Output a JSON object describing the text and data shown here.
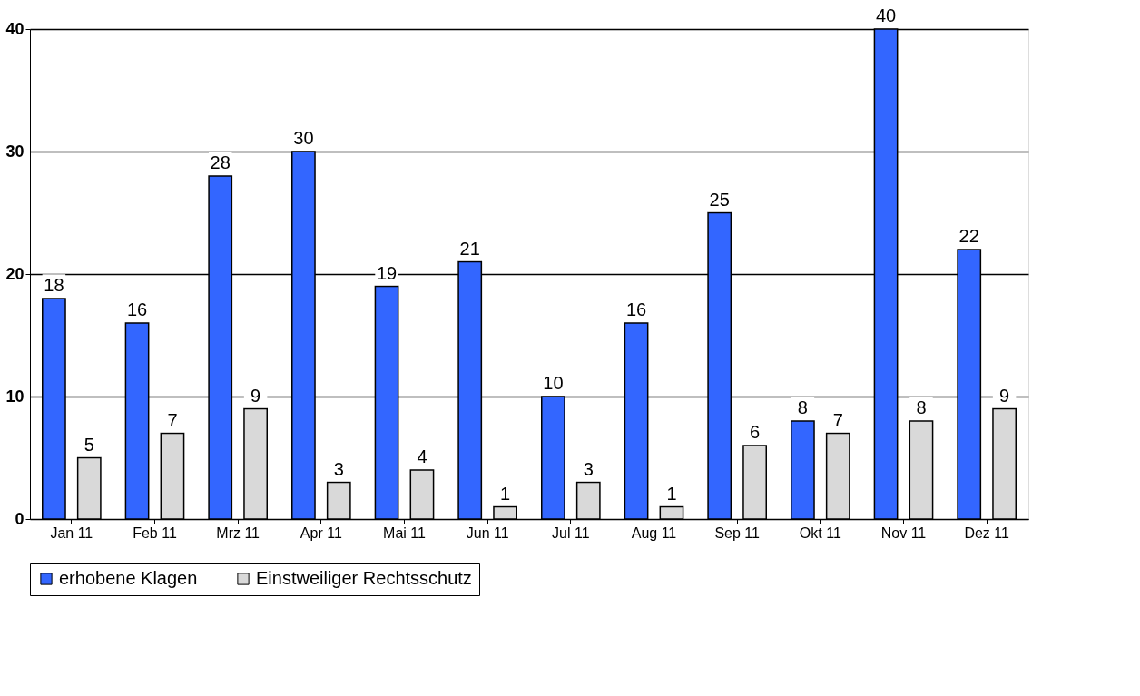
{
  "chart_data": {
    "type": "bar",
    "categories": [
      "Jan 11",
      "Feb 11",
      "Mrz 11",
      "Apr 11",
      "Mai 11",
      "Jun 11",
      "Jul 11",
      "Aug 11",
      "Sep 11",
      "Okt 11",
      "Nov 11",
      "Dez 11"
    ],
    "series": [
      {
        "name": "erhobene Klagen",
        "color": "#3366ff",
        "values": [
          18,
          16,
          28,
          30,
          19,
          21,
          10,
          16,
          25,
          8,
          40,
          22
        ]
      },
      {
        "name": "Einstweiliger Rechtsschutz",
        "color": "#d9d9d9",
        "values": [
          5,
          7,
          9,
          3,
          4,
          1,
          3,
          1,
          6,
          7,
          8,
          9
        ]
      }
    ],
    "ylim": [
      0,
      40
    ],
    "yticks": [
      0,
      10,
      20,
      30,
      40
    ],
    "grid": "y",
    "legend": "bottom",
    "data_labels": true
  }
}
